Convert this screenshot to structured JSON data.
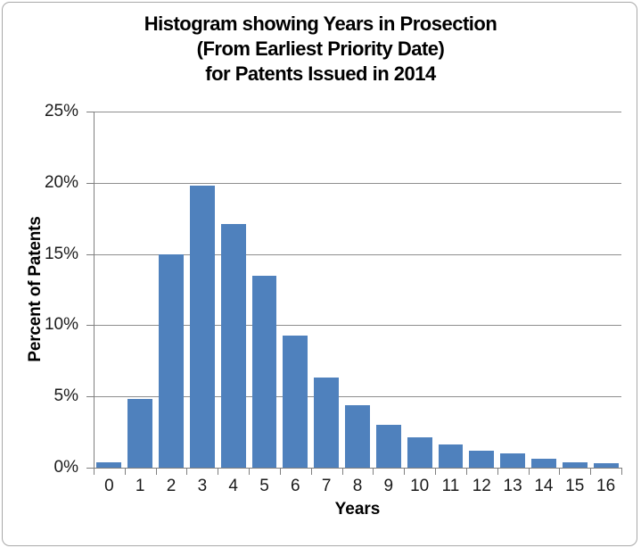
{
  "chart_data": {
    "type": "bar",
    "title": "Histogram showing Years in Prosection (From Earliest Priority Date) for Patents Issued in 2014",
    "title_lines": [
      "Histogram showing Years in Prosection",
      "(From Earliest Priority Date)",
      "for Patents Issued in 2014"
    ],
    "xlabel": "Years",
    "ylabel": "Percent of Patents",
    "categories": [
      "0",
      "1",
      "2",
      "3",
      "4",
      "5",
      "6",
      "7",
      "8",
      "9",
      "10",
      "11",
      "12",
      "13",
      "14",
      "15",
      "16"
    ],
    "values": [
      0.4,
      4.8,
      15.0,
      19.8,
      17.1,
      13.5,
      9.3,
      6.3,
      4.4,
      3.0,
      2.1,
      1.6,
      1.2,
      1.0,
      0.6,
      0.4,
      0.3
    ],
    "ylim": [
      0,
      25
    ],
    "ytick_step": 5,
    "ytick_suffix": "%",
    "grid": true,
    "legend": false,
    "colors": {
      "bar": "#4F81BD",
      "gridline": "#8E8E8E",
      "axis": "#7F7F7F",
      "text": "#000000",
      "frame_border": "#A8A8A8",
      "background": "#FFFFFF"
    }
  }
}
